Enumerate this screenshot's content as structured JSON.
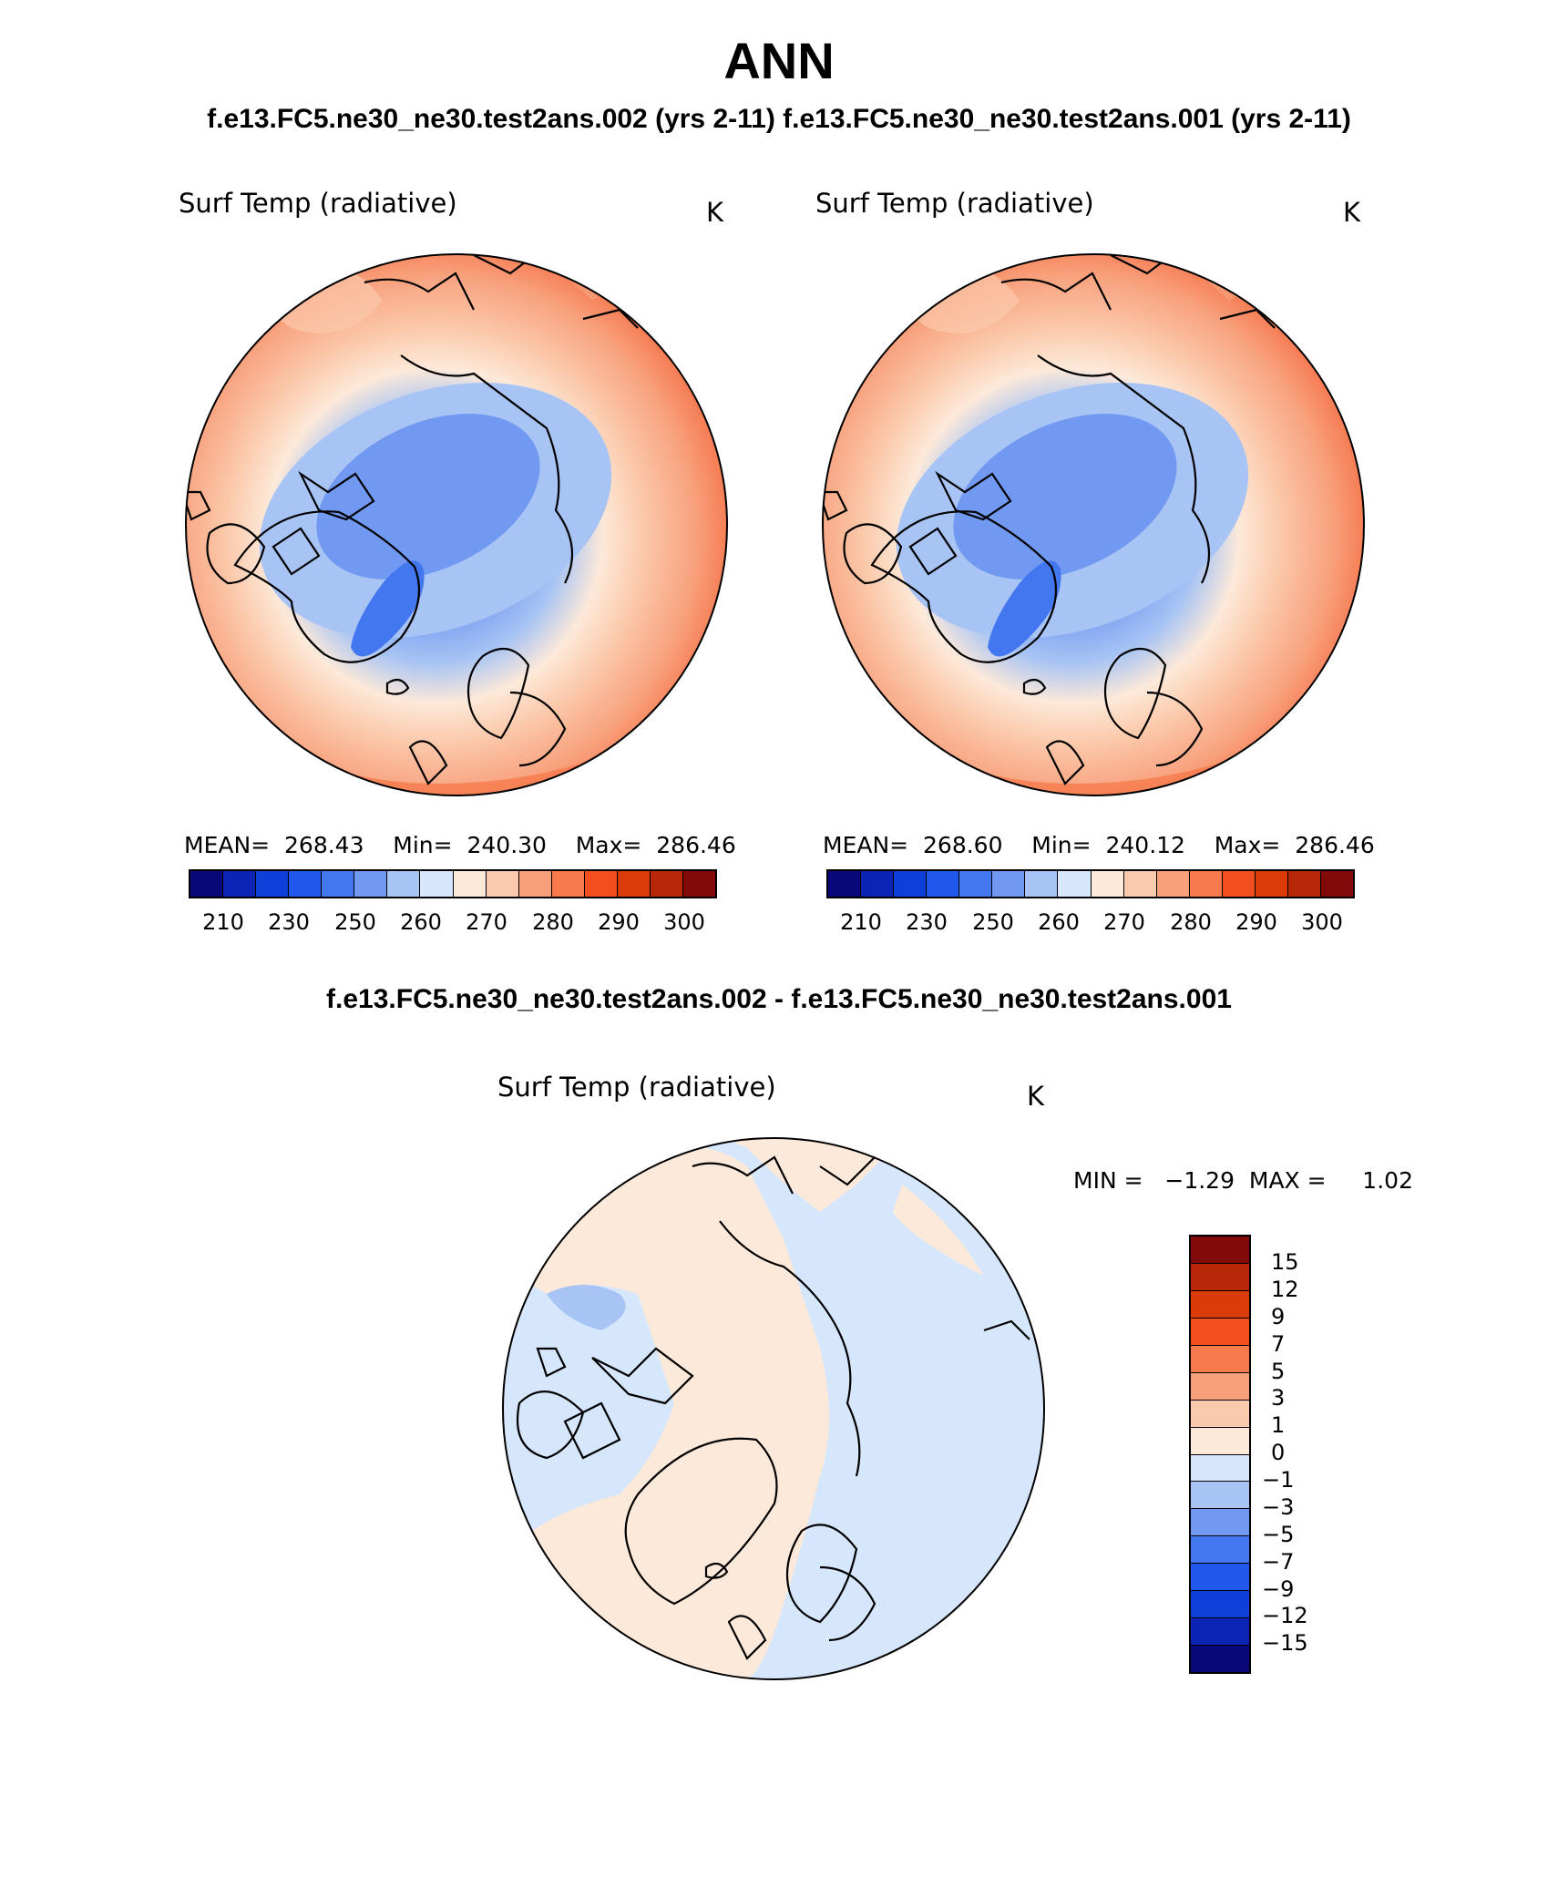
{
  "page": {
    "title": "ANN",
    "subtitle": "f.e13.FC5.ne30_ne30.test2ans.002 (yrs 2-11)  f.e13.FC5.ne30_ne30.test2ans.001 (yrs 2-11)",
    "diff_title": "f.e13.FC5.ne30_ne30.test2ans.002 - f.e13.FC5.ne30_ne30.test2ans.001"
  },
  "panels": [
    {
      "title": "Surf Temp (radiative)",
      "units": "K",
      "stats": "MEAN=  268.43    Min=  240.30    Max=  286.46",
      "colorbar_labels": [
        "210",
        "230",
        "250",
        "260",
        "270",
        "280",
        "290",
        "300"
      ]
    },
    {
      "title": "Surf Temp (radiative)",
      "units": "K",
      "stats": "MEAN=  268.60    Min=  240.12    Max=  286.46",
      "colorbar_labels": [
        "210",
        "230",
        "250",
        "260",
        "270",
        "280",
        "290",
        "300"
      ]
    }
  ],
  "diff_panel": {
    "title": "Surf Temp (radiative)",
    "units": "K",
    "stats": "MIN =   −1.29  MAX =     1.02",
    "colorbar_labels": [
      "15",
      "12",
      "9",
      "7",
      "5",
      "3",
      "1",
      "0",
      "−1",
      "−3",
      "−5",
      "−7",
      "−9",
      "−12",
      "−15"
    ]
  },
  "colors": {
    "abs_scale": [
      "#08087a",
      "#0b24b4",
      "#0f3fd9",
      "#2058eb",
      "#4377f0",
      "#7199f1",
      "#a8c4f4",
      "#d6e6fb",
      "#fde9d9",
      "#fbc9ab",
      "#f8a07c",
      "#f67a4c",
      "#f24f1f",
      "#da3b07",
      "#b82708",
      "#820a0a"
    ],
    "diff_scale": [
      "#820a0a",
      "#b82708",
      "#da3b07",
      "#f24f1f",
      "#f67a4c",
      "#f8a07c",
      "#fbc9ab",
      "#fde9d9",
      "#d6e6fb",
      "#a8c4f4",
      "#7199f1",
      "#4377f0",
      "#2058eb",
      "#0f3fd9",
      "#0b24b4",
      "#08087a"
    ],
    "coastline": "#000000"
  }
}
